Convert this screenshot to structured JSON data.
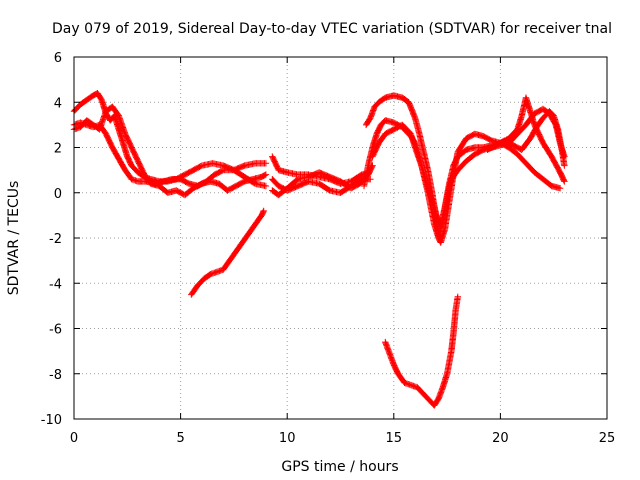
{
  "chart_data": {
    "type": "scatter",
    "title": "Day 079 of 2019, Sidereal Day-to-day VTEC variation (SDTVAR) for receiver tnal",
    "xlabel": "GPS time / hours",
    "ylabel": "SDTVAR / TECUs",
    "xlim": [
      0,
      25
    ],
    "ylim": [
      -10,
      6
    ],
    "xticks": [
      0,
      5,
      10,
      15,
      20,
      25
    ],
    "yticks": [
      -10,
      -8,
      -6,
      -4,
      -2,
      0,
      2,
      4,
      6
    ],
    "grid": true,
    "legend": "none",
    "marker": "+",
    "color": "#ff0000",
    "series": [
      {
        "name": "track-1",
        "points": [
          [
            0.0,
            3.6
          ],
          [
            0.3,
            3.9
          ],
          [
            0.6,
            4.1
          ],
          [
            0.9,
            4.3
          ],
          [
            1.1,
            4.4
          ],
          [
            1.3,
            4.1
          ],
          [
            1.5,
            3.5
          ],
          [
            1.7,
            3.2
          ],
          [
            1.9,
            3.4
          ],
          [
            2.1,
            2.8
          ],
          [
            2.3,
            2.2
          ],
          [
            2.5,
            1.6
          ],
          [
            2.7,
            1.2
          ],
          [
            3.0,
            0.9
          ],
          [
            3.3,
            0.7
          ],
          [
            3.6,
            0.6
          ],
          [
            4.0,
            0.5
          ],
          [
            4.4,
            0.5
          ],
          [
            4.8,
            0.6
          ],
          [
            5.2,
            0.8
          ],
          [
            5.6,
            1.0
          ],
          [
            6.0,
            1.2
          ],
          [
            6.5,
            1.3
          ],
          [
            7.0,
            1.2
          ],
          [
            7.5,
            1.0
          ],
          [
            8.0,
            1.2
          ],
          [
            8.5,
            1.3
          ],
          [
            9.0,
            1.3
          ]
        ]
      },
      {
        "name": "track-2",
        "points": [
          [
            0.0,
            3.0
          ],
          [
            0.3,
            3.1
          ],
          [
            0.6,
            3.0
          ],
          [
            0.9,
            2.9
          ],
          [
            1.2,
            3.0
          ],
          [
            1.5,
            2.6
          ],
          [
            1.8,
            2.0
          ],
          [
            2.1,
            1.5
          ],
          [
            2.4,
            1.0
          ],
          [
            2.7,
            0.6
          ],
          [
            3.0,
            0.5
          ],
          [
            3.4,
            0.5
          ],
          [
            3.8,
            0.4
          ],
          [
            4.2,
            0.5
          ],
          [
            4.6,
            0.6
          ],
          [
            5.0,
            0.6
          ],
          [
            5.4,
            0.4
          ],
          [
            5.8,
            0.3
          ],
          [
            6.2,
            0.5
          ],
          [
            6.6,
            0.8
          ],
          [
            7.0,
            1.0
          ],
          [
            7.5,
            1.0
          ],
          [
            8.0,
            0.7
          ],
          [
            8.5,
            0.4
          ],
          [
            9.0,
            0.3
          ]
        ]
      },
      {
        "name": "track-3",
        "points": [
          [
            0.0,
            2.8
          ],
          [
            0.3,
            2.9
          ],
          [
            0.6,
            3.2
          ],
          [
            0.9,
            3.0
          ],
          [
            1.2,
            2.8
          ],
          [
            1.5,
            3.6
          ],
          [
            1.8,
            3.8
          ],
          [
            2.1,
            3.4
          ],
          [
            2.4,
            2.6
          ],
          [
            2.7,
            2.0
          ],
          [
            3.0,
            1.4
          ],
          [
            3.3,
            0.8
          ],
          [
            3.6,
            0.4
          ],
          [
            4.0,
            0.3
          ],
          [
            4.4,
            0.0
          ],
          [
            4.8,
            0.1
          ],
          [
            5.2,
            -0.1
          ],
          [
            5.6,
            0.2
          ],
          [
            6.0,
            0.4
          ],
          [
            6.4,
            0.5
          ],
          [
            6.8,
            0.4
          ],
          [
            7.2,
            0.1
          ],
          [
            7.6,
            0.3
          ],
          [
            8.0,
            0.5
          ],
          [
            8.4,
            0.6
          ],
          [
            8.8,
            0.7
          ],
          [
            9.0,
            0.8
          ]
        ]
      },
      {
        "name": "track-4",
        "points": [
          [
            5.5,
            -4.5
          ],
          [
            5.8,
            -4.1
          ],
          [
            6.1,
            -3.8
          ],
          [
            6.4,
            -3.6
          ],
          [
            6.7,
            -3.5
          ],
          [
            7.0,
            -3.4
          ],
          [
            7.3,
            -3.0
          ],
          [
            7.6,
            -2.6
          ],
          [
            7.9,
            -2.2
          ],
          [
            8.2,
            -1.8
          ],
          [
            8.5,
            -1.4
          ],
          [
            8.8,
            -1.0
          ],
          [
            8.9,
            -0.8
          ]
        ]
      },
      {
        "name": "track-5",
        "points": [
          [
            9.3,
            1.6
          ],
          [
            9.6,
            1.0
          ],
          [
            10.0,
            0.9
          ],
          [
            10.5,
            0.8
          ],
          [
            11.0,
            0.8
          ],
          [
            11.5,
            0.7
          ],
          [
            12.0,
            0.6
          ],
          [
            12.5,
            0.4
          ],
          [
            13.0,
            0.5
          ],
          [
            13.5,
            0.8
          ],
          [
            13.8,
            0.9
          ]
        ]
      },
      {
        "name": "track-6",
        "points": [
          [
            9.3,
            0.6
          ],
          [
            9.6,
            0.3
          ],
          [
            10.0,
            0.1
          ],
          [
            10.5,
            0.3
          ],
          [
            11.0,
            0.5
          ],
          [
            11.5,
            0.4
          ],
          [
            12.0,
            0.1
          ],
          [
            12.5,
            0.0
          ],
          [
            13.0,
            0.3
          ],
          [
            13.5,
            0.6
          ],
          [
            13.9,
            0.6
          ]
        ]
      },
      {
        "name": "track-7",
        "points": [
          [
            9.3,
            0.1
          ],
          [
            9.6,
            -0.1
          ],
          [
            10.0,
            0.2
          ],
          [
            10.5,
            0.6
          ],
          [
            11.0,
            0.7
          ],
          [
            11.5,
            0.9
          ],
          [
            12.0,
            0.7
          ],
          [
            12.5,
            0.5
          ],
          [
            13.0,
            0.2
          ],
          [
            13.4,
            0.4
          ],
          [
            13.8,
            0.8
          ],
          [
            14.0,
            1.2
          ]
        ]
      },
      {
        "name": "track-8",
        "points": [
          [
            13.6,
            0.3
          ],
          [
            13.8,
            1.2
          ],
          [
            14.0,
            2.0
          ],
          [
            14.2,
            2.6
          ],
          [
            14.4,
            3.0
          ],
          [
            14.6,
            3.2
          ],
          [
            15.0,
            3.1
          ],
          [
            15.4,
            2.9
          ],
          [
            15.8,
            2.5
          ],
          [
            16.0,
            2.2
          ],
          [
            16.3,
            1.2
          ],
          [
            16.6,
            0.2
          ],
          [
            16.9,
            -0.6
          ],
          [
            17.0,
            -1.0
          ],
          [
            17.2,
            -1.5
          ],
          [
            17.4,
            -0.6
          ],
          [
            17.6,
            0.4
          ],
          [
            17.8,
            1.2
          ],
          [
            18.0,
            1.6
          ],
          [
            18.4,
            1.9
          ],
          [
            18.8,
            2.0
          ],
          [
            19.2,
            2.0
          ],
          [
            19.6,
            2.1
          ],
          [
            20.0,
            2.2
          ],
          [
            20.4,
            2.4
          ],
          [
            20.8,
            2.8
          ],
          [
            21.0,
            3.4
          ],
          [
            21.2,
            4.2
          ],
          [
            21.4,
            3.6
          ],
          [
            21.6,
            3.0
          ],
          [
            22.0,
            2.2
          ],
          [
            22.4,
            1.6
          ],
          [
            22.8,
            0.9
          ],
          [
            23.0,
            0.5
          ]
        ]
      },
      {
        "name": "track-9",
        "points": [
          [
            13.7,
            3.0
          ],
          [
            13.9,
            3.3
          ],
          [
            14.1,
            3.8
          ],
          [
            14.3,
            4.0
          ],
          [
            14.6,
            4.2
          ],
          [
            15.0,
            4.3
          ],
          [
            15.4,
            4.2
          ],
          [
            15.7,
            4.0
          ],
          [
            16.0,
            3.3
          ],
          [
            16.2,
            2.6
          ],
          [
            16.4,
            1.8
          ],
          [
            16.6,
            1.0
          ],
          [
            16.8,
            0.0
          ],
          [
            17.0,
            -1.2
          ],
          [
            17.1,
            -2.0
          ],
          [
            17.2,
            -2.2
          ],
          [
            17.4,
            -1.6
          ],
          [
            17.6,
            -0.4
          ],
          [
            17.8,
            0.8
          ],
          [
            18.0,
            1.8
          ],
          [
            18.4,
            2.4
          ],
          [
            18.8,
            2.6
          ],
          [
            19.2,
            2.5
          ],
          [
            19.6,
            2.3
          ],
          [
            20.0,
            2.2
          ],
          [
            20.4,
            2.0
          ],
          [
            20.8,
            1.7
          ],
          [
            21.2,
            1.3
          ],
          [
            21.6,
            0.9
          ],
          [
            22.0,
            0.6
          ],
          [
            22.4,
            0.3
          ],
          [
            22.8,
            0.2
          ]
        ]
      },
      {
        "name": "track-10",
        "points": [
          [
            14.0,
            1.6
          ],
          [
            14.3,
            2.2
          ],
          [
            14.6,
            2.6
          ],
          [
            15.0,
            2.8
          ],
          [
            15.4,
            3.0
          ],
          [
            15.8,
            2.6
          ],
          [
            16.0,
            2.0
          ],
          [
            16.3,
            1.2
          ],
          [
            16.6,
            0.0
          ],
          [
            16.9,
            -1.4
          ],
          [
            17.1,
            -2.0
          ],
          [
            17.3,
            -1.2
          ],
          [
            17.5,
            -0.2
          ],
          [
            17.7,
            0.6
          ],
          [
            18.0,
            1.0
          ],
          [
            18.4,
            1.4
          ],
          [
            18.8,
            1.7
          ],
          [
            19.2,
            1.9
          ],
          [
            19.6,
            2.0
          ],
          [
            20.0,
            2.1
          ],
          [
            20.4,
            2.2
          ],
          [
            20.8,
            2.6
          ],
          [
            21.2,
            3.0
          ],
          [
            21.6,
            3.5
          ],
          [
            22.0,
            3.7
          ],
          [
            22.3,
            3.5
          ],
          [
            22.6,
            3.0
          ],
          [
            22.8,
            2.2
          ],
          [
            23.0,
            1.6
          ]
        ]
      },
      {
        "name": "track-11",
        "points": [
          [
            19.4,
            1.9
          ],
          [
            19.8,
            2.1
          ],
          [
            20.2,
            2.3
          ],
          [
            20.6,
            2.1
          ],
          [
            21.0,
            1.9
          ],
          [
            21.4,
            2.4
          ],
          [
            21.7,
            2.9
          ],
          [
            22.0,
            3.3
          ],
          [
            22.3,
            3.6
          ],
          [
            22.5,
            3.4
          ],
          [
            22.7,
            2.8
          ],
          [
            22.9,
            1.8
          ],
          [
            23.0,
            1.2
          ]
        ]
      },
      {
        "name": "track-12",
        "points": [
          [
            14.6,
            -6.6
          ],
          [
            14.8,
            -7.1
          ],
          [
            15.0,
            -7.6
          ],
          [
            15.2,
            -8.0
          ],
          [
            15.5,
            -8.4
          ],
          [
            15.8,
            -8.5
          ],
          [
            16.1,
            -8.6
          ],
          [
            16.4,
            -8.9
          ],
          [
            16.7,
            -9.2
          ],
          [
            16.9,
            -9.4
          ],
          [
            17.1,
            -9.1
          ],
          [
            17.3,
            -8.6
          ],
          [
            17.5,
            -8.0
          ],
          [
            17.7,
            -7.0
          ],
          [
            17.8,
            -6.2
          ],
          [
            17.9,
            -5.2
          ],
          [
            18.0,
            -4.6
          ]
        ]
      }
    ]
  }
}
